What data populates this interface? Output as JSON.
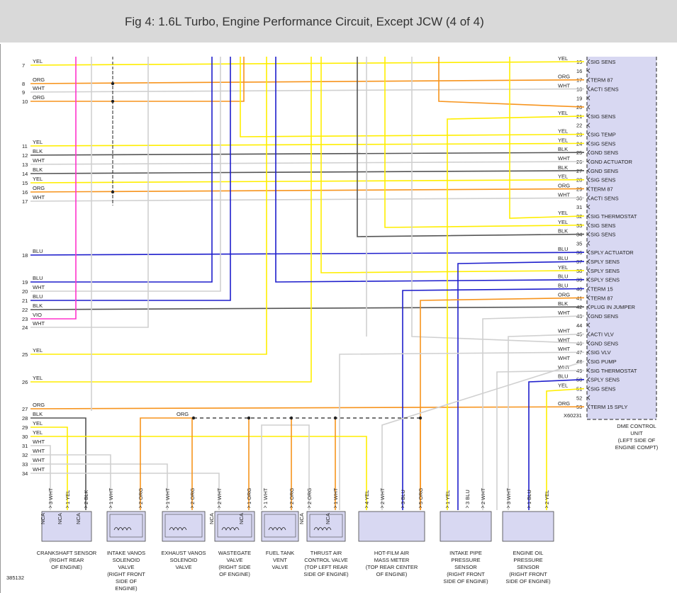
{
  "title": "Fig 4: 1.6L Turbo, Engine Performance Circuit, Except JCW (4 of 4)",
  "figure_id": "385132",
  "colors": {
    "YEL": "#ffee00",
    "ORG": "#f7941d",
    "WHT": "#d0d0d0",
    "BLK": "#555555",
    "BLU": "#1e1ecc",
    "VIO": "#ff33cc",
    "module": "#d8d8f2"
  },
  "connector_id": "X60231",
  "module_label": [
    "DME CONTROL",
    "UNIT",
    "(LEFT SIDE OF",
    "ENGINE COMPT)"
  ],
  "left_wires": [
    {
      "n": "7",
      "c": "YEL"
    },
    {
      "n": "8",
      "c": "ORG"
    },
    {
      "n": "9",
      "c": "WHT"
    },
    {
      "n": "10",
      "c": "ORG"
    },
    {
      "n": "11",
      "c": "YEL"
    },
    {
      "n": "12",
      "c": "BLK"
    },
    {
      "n": "13",
      "c": "WHT"
    },
    {
      "n": "14",
      "c": "BLK"
    },
    {
      "n": "15",
      "c": "YEL"
    },
    {
      "n": "16",
      "c": "ORG"
    },
    {
      "n": "17",
      "c": "WHT"
    },
    {
      "n": "18",
      "c": "BLU"
    },
    {
      "n": "19",
      "c": "BLU"
    },
    {
      "n": "20",
      "c": "WHT"
    },
    {
      "n": "21",
      "c": "BLU"
    },
    {
      "n": "22",
      "c": "BLK"
    },
    {
      "n": "23",
      "c": "VIO"
    },
    {
      "n": "24",
      "c": "WHT"
    },
    {
      "n": "25",
      "c": "YEL"
    },
    {
      "n": "26",
      "c": "YEL"
    },
    {
      "n": "27",
      "c": "ORG"
    },
    {
      "n": "28",
      "c": "BLK"
    },
    {
      "n": "29",
      "c": "YEL"
    },
    {
      "n": "30",
      "c": "YEL"
    },
    {
      "n": "31",
      "c": "WHT"
    },
    {
      "n": "32",
      "c": "WHT"
    },
    {
      "n": "33",
      "c": "WHT"
    },
    {
      "n": "34",
      "c": "WHT"
    }
  ],
  "pins": [
    {
      "p": "15",
      "c": "YEL",
      "f": "SIG SENS"
    },
    {
      "p": "16",
      "c": "",
      "f": ""
    },
    {
      "p": "17",
      "c": "ORG",
      "f": "TERM 87"
    },
    {
      "p": "18",
      "c": "WHT",
      "f": "ACTI SENS"
    },
    {
      "p": "19",
      "c": "",
      "f": ""
    },
    {
      "p": "20",
      "c": "",
      "f": ""
    },
    {
      "p": "21",
      "c": "YEL",
      "f": "SIG SENS"
    },
    {
      "p": "22",
      "c": "",
      "f": ""
    },
    {
      "p": "23",
      "c": "YEL",
      "f": "SIG TEMP"
    },
    {
      "p": "24",
      "c": "YEL",
      "f": "SIG SENS"
    },
    {
      "p": "25",
      "c": "BLK",
      "f": "GND SENS"
    },
    {
      "p": "26",
      "c": "WHT",
      "f": "GND ACTUATOR"
    },
    {
      "p": "27",
      "c": "BLK",
      "f": "GND SENS"
    },
    {
      "p": "28",
      "c": "YEL",
      "f": "SIG SENS"
    },
    {
      "p": "29",
      "c": "ORG",
      "f": "TERM 87"
    },
    {
      "p": "30",
      "c": "WHT",
      "f": "ACTI SENS"
    },
    {
      "p": "31",
      "c": "",
      "f": ""
    },
    {
      "p": "32",
      "c": "YEL",
      "f": "SIG THERMOSTAT"
    },
    {
      "p": "33",
      "c": "YEL",
      "f": "SIG SENS"
    },
    {
      "p": "34",
      "c": "BLK",
      "f": "SIG SENS"
    },
    {
      "p": "35",
      "c": "",
      "f": ""
    },
    {
      "p": "36",
      "c": "BLU",
      "f": "SPLY ACTUATOR"
    },
    {
      "p": "37",
      "c": "BLU",
      "f": "SPLY SENS"
    },
    {
      "p": "38",
      "c": "YEL",
      "f": "SPLY SENS"
    },
    {
      "p": "39",
      "c": "BLU",
      "f": "SPLY SENS"
    },
    {
      "p": "40",
      "c": "BLU",
      "f": "TERM 15"
    },
    {
      "p": "41",
      "c": "ORG",
      "f": "TERM 87"
    },
    {
      "p": "42",
      "c": "BLK",
      "f": "PLUG IN JUMPER"
    },
    {
      "p": "43",
      "c": "WHT",
      "f": "GND SENS"
    },
    {
      "p": "44",
      "c": "",
      "f": ""
    },
    {
      "p": "45",
      "c": "WHT",
      "f": "ACTI VLV"
    },
    {
      "p": "46",
      "c": "WHT",
      "f": "GND SENS"
    },
    {
      "p": "47",
      "c": "WHT",
      "f": "SIG VLV"
    },
    {
      "p": "48",
      "c": "WHT",
      "f": "SIG PUMP"
    },
    {
      "p": "49",
      "c": "WHT",
      "f": "SIG THERMOSTAT"
    },
    {
      "p": "50",
      "c": "BLU",
      "f": "SPLY SENS"
    },
    {
      "p": "51",
      "c": "YEL",
      "f": "SIG SENS"
    },
    {
      "p": "52",
      "c": "",
      "f": ""
    },
    {
      "p": "53",
      "c": "ORG",
      "f": "TERM 15 SPLY"
    }
  ],
  "bus_label": "ORG",
  "components": [
    {
      "id": "crankshaft",
      "label": [
        "CRANKSHAFT SENSOR",
        "(RIGHT REAR",
        "OF ENGINE)"
      ],
      "pins": [
        {
          "n": "3",
          "c": "WHT"
        },
        {
          "n": "1",
          "c": "YEL"
        },
        {
          "n": "2",
          "c": "BLK"
        }
      ],
      "nca": [
        "NCA",
        "NCA",
        "NCA"
      ]
    },
    {
      "id": "intake-vanos",
      "label": [
        "INTAKE VANOS",
        "SOLENOID",
        "VALVE",
        "(RIGHT FRONT",
        "SIDE OF",
        "ENGINE)"
      ],
      "pins": [
        {
          "n": "1",
          "c": "WHT"
        },
        {
          "n": "2",
          "c": "ORG"
        }
      ],
      "nca": []
    },
    {
      "id": "exhaust-vanos",
      "label": [
        "EXHAUST VANOS",
        "SOLENOID",
        "VALVE"
      ],
      "pins": [
        {
          "n": "1",
          "c": "WHT"
        },
        {
          "n": "2",
          "c": "ORG"
        }
      ],
      "nca": []
    },
    {
      "id": "wastegate",
      "label": [
        "WASTEGATE",
        "VALVE",
        "(RIGHT SIDE",
        "OF ENGINE)"
      ],
      "pins": [
        {
          "n": "2",
          "c": "WHT"
        },
        {
          "n": "1",
          "c": "ORG"
        }
      ],
      "nca": [
        "NCA",
        "NCA"
      ]
    },
    {
      "id": "fuel-tank-vent",
      "label": [
        "FUEL TANK",
        "VENT",
        "VALVE"
      ],
      "pins": [
        {
          "n": "1",
          "c": "WHT"
        },
        {
          "n": "2",
          "c": "ORG"
        }
      ],
      "nca": []
    },
    {
      "id": "thrust-air",
      "label": [
        "THRUST AIR",
        "CONTROL VALVE",
        "(TOP LEFT REAR",
        "SIDE OF ENGINE)"
      ],
      "pins": [
        {
          "n": "2",
          "c": "ORG"
        },
        {
          "n": "1",
          "c": "WHT"
        }
      ],
      "nca": [
        "NCA",
        "NCA"
      ]
    },
    {
      "id": "hot-film",
      "label": [
        "HOT-FILM AIR",
        "MASS METER",
        "(TOP REAR CENTER",
        "OF ENGINE)"
      ],
      "pins": [
        {
          "n": "4",
          "c": "YEL"
        },
        {
          "n": "2",
          "c": "WHT"
        },
        {
          "n": "3",
          "c": "BLU"
        },
        {
          "n": "5",
          "c": "ORG"
        }
      ],
      "nca": []
    },
    {
      "id": "intake-pipe",
      "label": [
        "INTAKE PIPE",
        "PRESSURE",
        "SENSOR",
        "(RIGHT FRONT",
        "SIDE OF ENGINE)"
      ],
      "pins": [
        {
          "n": "1",
          "c": "YEL"
        },
        {
          "n": "3",
          "c": "BLU"
        },
        {
          "n": "2",
          "c": "WHT"
        }
      ],
      "nca": []
    },
    {
      "id": "engine-oil",
      "label": [
        "ENGINE OIL",
        "PRESSURE",
        "SENSOR",
        "(RIGHT FRONT",
        "SIDE OF ENGINE)"
      ],
      "pins": [
        {
          "n": "3",
          "c": "WHT"
        },
        {
          "n": "1",
          "c": "BLU"
        },
        {
          "n": "2",
          "c": "YEL"
        }
      ],
      "nca": []
    }
  ]
}
